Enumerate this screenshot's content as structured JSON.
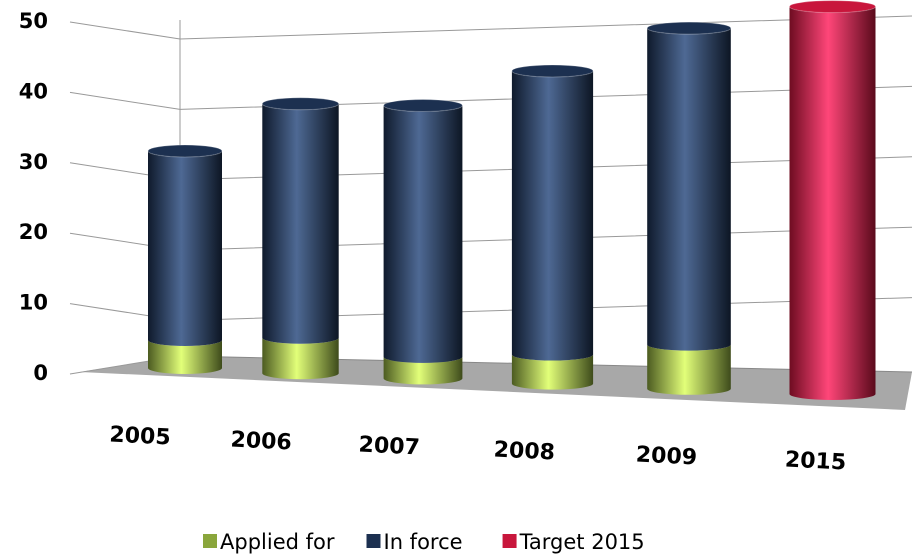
{
  "chart_data": {
    "type": "bar3d",
    "categories": [
      "2005",
      "2006",
      "2007",
      "2008",
      "2009",
      "2015"
    ],
    "series": [
      {
        "name": "Applied for",
        "color": "#8aa63c",
        "values": [
          4,
          5,
          3,
          4,
          6,
          null
        ]
      },
      {
        "name": "In force",
        "color": "#1c3050",
        "values": [
          27,
          33,
          35,
          39,
          43,
          null
        ]
      },
      {
        "name": "Target 2015",
        "color": "#c8163c",
        "values": [
          null,
          null,
          null,
          null,
          null,
          52
        ]
      }
    ],
    "stacked": true,
    "ylim": [
      0,
      50
    ],
    "yticks": [
      0,
      10,
      20,
      30,
      40,
      50
    ],
    "grid": true
  }
}
